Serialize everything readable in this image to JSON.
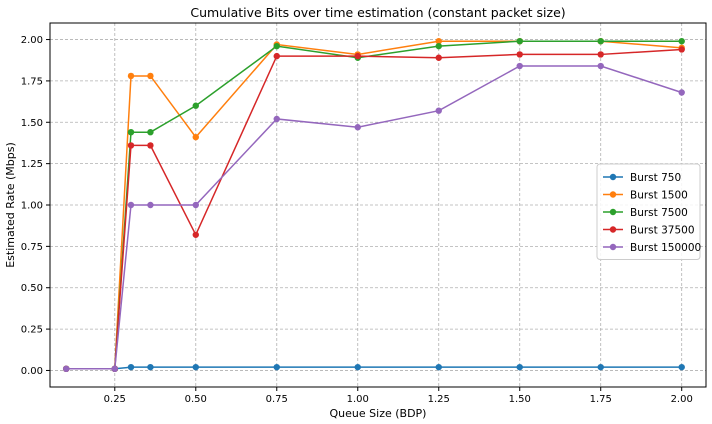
{
  "chart_data": {
    "type": "line",
    "title": "Cumulative Bits over time estimation (constant packet size)",
    "xlabel": "Queue Size (BDP)",
    "ylabel": "Estimated Rate (Mbps)",
    "xlim": [
      0.05,
      2.075
    ],
    "ylim": [
      -0.1,
      2.1
    ],
    "x_ticks": [
      0.25,
      0.5,
      0.75,
      1.0,
      1.25,
      1.5,
      1.75,
      2.0
    ],
    "x_tick_labels": [
      "0.25",
      "0.50",
      "0.75",
      "1.00",
      "1.25",
      "1.50",
      "1.75",
      "2.00"
    ],
    "y_ticks": [
      0.0,
      0.25,
      0.5,
      0.75,
      1.0,
      1.25,
      1.5,
      1.75,
      2.0
    ],
    "y_tick_labels": [
      "0.00",
      "0.25",
      "0.50",
      "0.75",
      "1.00",
      "1.25",
      "1.50",
      "1.75",
      "2.00"
    ],
    "grid": true,
    "legend_position": "center-right",
    "x": [
      0.1,
      0.25,
      0.3,
      0.36,
      0.5,
      0.75,
      1.0,
      1.25,
      1.5,
      1.75,
      2.0
    ],
    "series": [
      {
        "name": "Burst 750",
        "color": "#1f77b4",
        "values": [
          0.01,
          0.01,
          0.02,
          0.02,
          0.02,
          0.02,
          0.02,
          0.02,
          0.02,
          0.02,
          0.02
        ]
      },
      {
        "name": "Burst 1500",
        "color": "#ff7f0e",
        "values": [
          0.01,
          0.01,
          1.78,
          1.78,
          1.41,
          1.97,
          1.91,
          1.99,
          1.99,
          1.99,
          1.95
        ]
      },
      {
        "name": "Burst 7500",
        "color": "#2ca02c",
        "values": [
          0.01,
          0.01,
          1.44,
          1.44,
          1.6,
          1.96,
          1.89,
          1.96,
          1.99,
          1.99,
          1.99
        ]
      },
      {
        "name": "Burst 37500",
        "color": "#d62728",
        "values": [
          0.01,
          0.01,
          1.36,
          1.36,
          0.82,
          1.9,
          1.9,
          1.89,
          1.91,
          1.91,
          1.94
        ]
      },
      {
        "name": "Burst 150000",
        "color": "#9467bd",
        "values": [
          0.01,
          0.01,
          1.0,
          1.0,
          1.0,
          1.52,
          1.47,
          1.57,
          1.84,
          1.84,
          1.68
        ]
      }
    ]
  }
}
